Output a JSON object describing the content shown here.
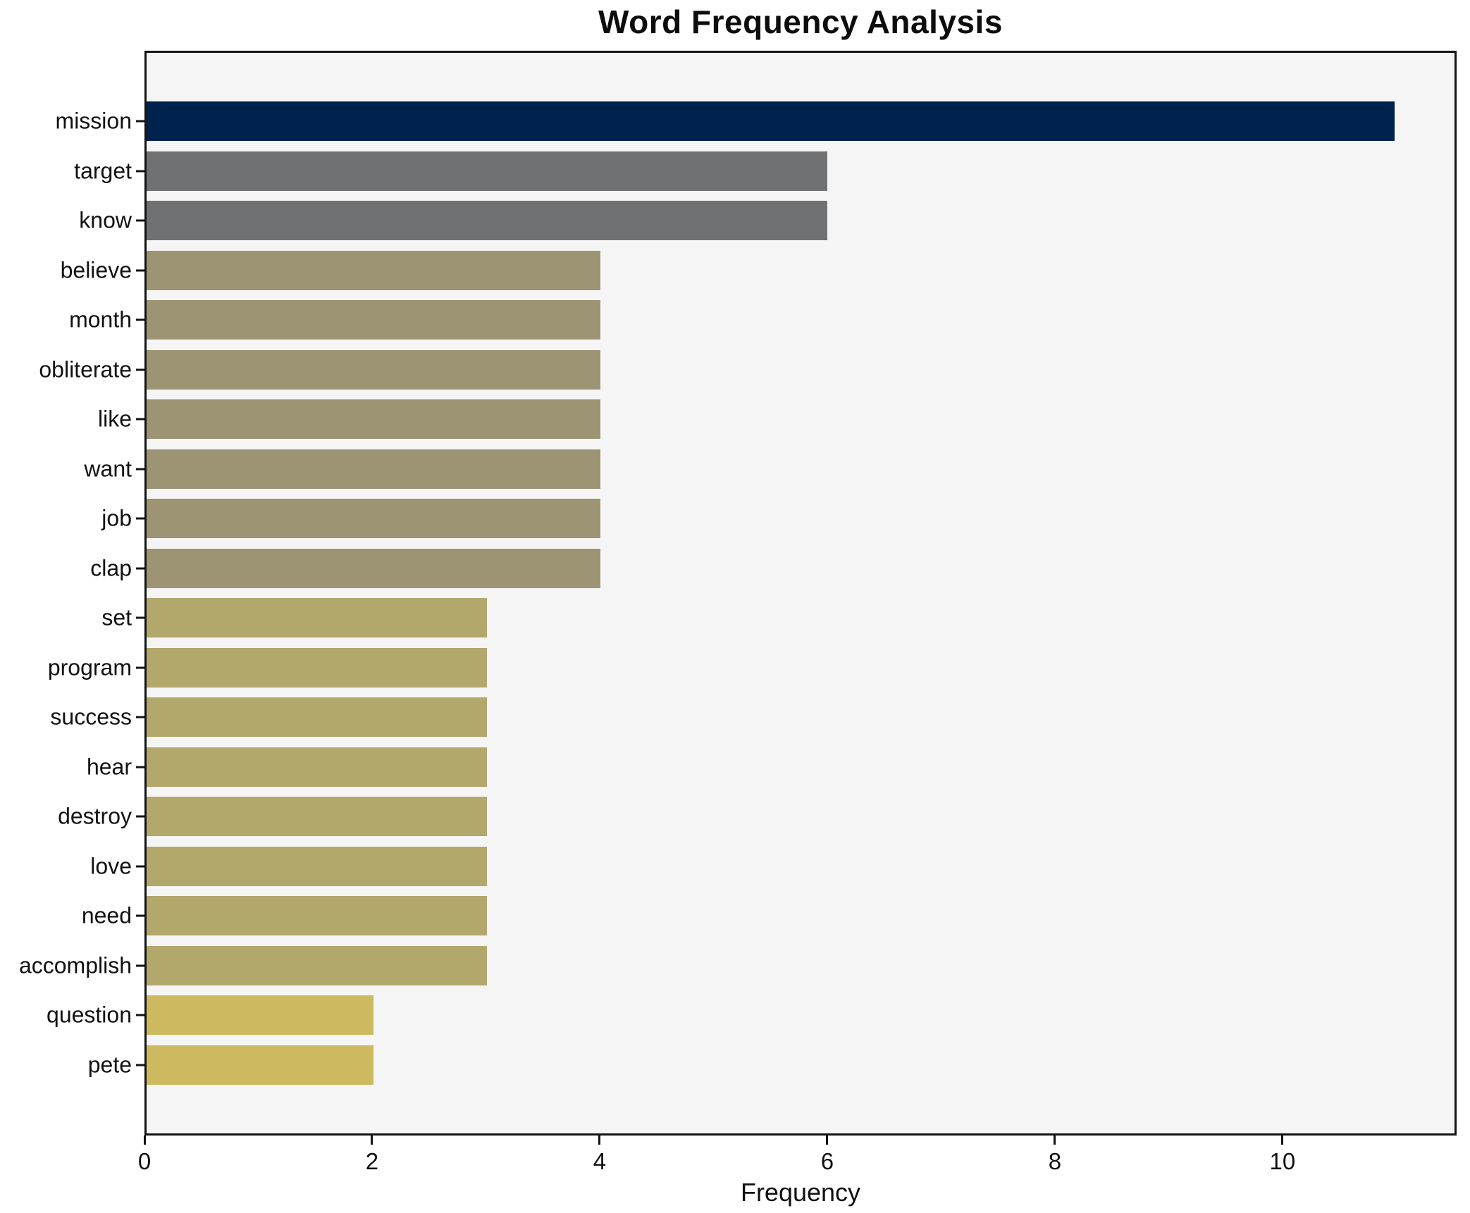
{
  "chart_data": {
    "type": "bar",
    "orientation": "horizontal",
    "title": "Word Frequency Analysis",
    "xlabel": "Frequency",
    "ylabel": "",
    "categories": [
      "mission",
      "target",
      "know",
      "believe",
      "month",
      "obliterate",
      "like",
      "want",
      "job",
      "clap",
      "set",
      "program",
      "success",
      "hear",
      "destroy",
      "love",
      "need",
      "accomplish",
      "question",
      "pete"
    ],
    "values": [
      11,
      6,
      6,
      4,
      4,
      4,
      4,
      4,
      4,
      4,
      3,
      3,
      3,
      3,
      3,
      3,
      3,
      3,
      2,
      2
    ],
    "bar_colors": [
      "#00234d",
      "#707173",
      "#707173",
      "#9d9473",
      "#9d9473",
      "#9d9473",
      "#9d9473",
      "#9d9473",
      "#9d9473",
      "#9d9473",
      "#b2a86c",
      "#b2a86c",
      "#b2a86c",
      "#b2a86c",
      "#b2a86c",
      "#b2a86c",
      "#b2a86c",
      "#b2a86c",
      "#cdba60",
      "#cdba60"
    ],
    "x_ticks": [
      0,
      2,
      4,
      6,
      8,
      10
    ],
    "xlim": [
      0,
      11.53
    ],
    "grid": false,
    "legend": false,
    "plot_bg": "#f5f5f6",
    "figure_bg": "#ffffff",
    "spine_color": "#141414"
  }
}
